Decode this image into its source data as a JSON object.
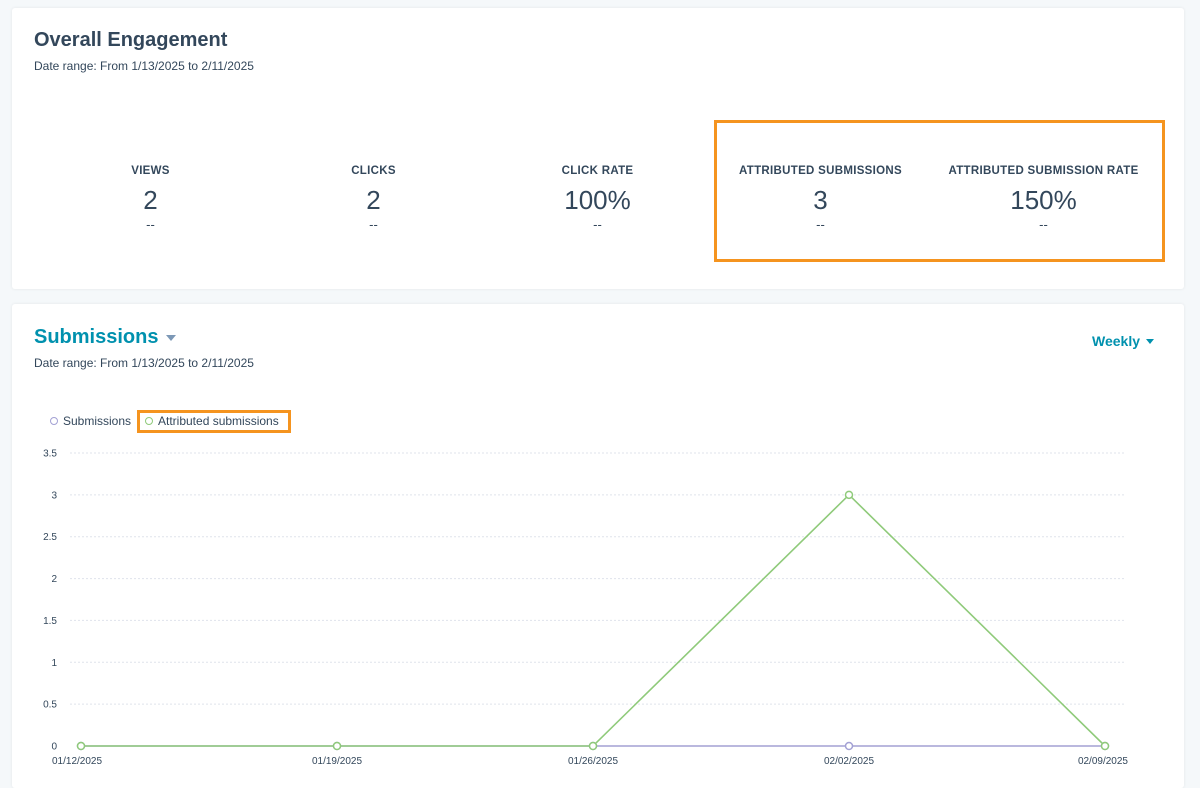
{
  "engagement": {
    "title": "Overall Engagement",
    "date_range": "Date range: From 1/13/2025 to 2/11/2025",
    "metrics": [
      {
        "label": "VIEWS",
        "value": "2",
        "delta": "--"
      },
      {
        "label": "CLICKS",
        "value": "2",
        "delta": "--"
      },
      {
        "label": "CLICK RATE",
        "value": "100%",
        "delta": "--"
      },
      {
        "label": "ATTRIBUTED SUBMISSIONS",
        "value": "3",
        "delta": "--"
      },
      {
        "label": "ATTRIBUTED SUBMISSION RATE",
        "value": "150%",
        "delta": "--"
      }
    ]
  },
  "submissions": {
    "title": "Submissions",
    "date_range": "Date range: From 1/13/2025 to 2/11/2025",
    "interval": "Weekly"
  },
  "colors": {
    "highlight": "#f5941f",
    "submissions_series": "#a3a1d4",
    "attributed_series": "#8fca7a",
    "link": "#0091ae"
  },
  "chart_data": {
    "type": "line",
    "categories": [
      "01/12/2025",
      "01/19/2025",
      "01/26/2025",
      "02/02/2025",
      "02/09/2025"
    ],
    "series": [
      {
        "name": "Submissions",
        "values": [
          0,
          0,
          0,
          0,
          0
        ]
      },
      {
        "name": "Attributed submissions",
        "values": [
          0,
          0,
          0,
          3,
          0
        ]
      }
    ],
    "ylim": [
      0,
      3.5
    ],
    "yticks": [
      "0",
      "0.5",
      "1",
      "1.5",
      "2",
      "2.5",
      "3",
      "3.5"
    ],
    "legend": "top-left",
    "grid": true
  }
}
